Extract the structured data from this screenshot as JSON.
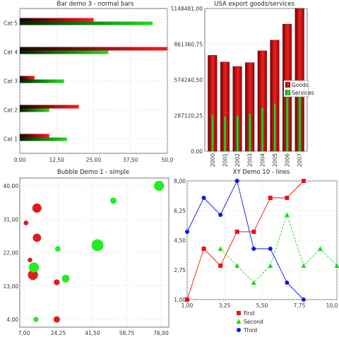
{
  "chart_data": [
    {
      "type": "bar",
      "orientation": "horizontal",
      "title": "Bar demo 3 - normal bars",
      "categories": [
        "Cat 1",
        "Cat 2",
        "Cat 3",
        "Cat 4",
        "Cat 5"
      ],
      "series": [
        {
          "values": [
            10,
            20,
            5,
            50,
            25
          ]
        },
        {
          "values": [
            16,
            10,
            15,
            30,
            45
          ]
        }
      ],
      "xlim": [
        0,
        50
      ],
      "xticks": [
        "0,00",
        "12,50",
        "25,00",
        "37,50",
        "50,0"
      ],
      "grid": true,
      "colors": [
        "#e31a1a",
        "#22cc22"
      ]
    },
    {
      "type": "bar",
      "title": "USA export goods/services",
      "categories": [
        "2000",
        "2001",
        "2002",
        "2003",
        "2004",
        "2005",
        "2006",
        "2007"
      ],
      "series": [
        {
          "name": "Goods",
          "values": [
            772000,
            718000,
            682000,
            713000,
            808000,
            894000,
            1023000,
            1148481
          ]
        },
        {
          "name": "Services",
          "values": [
            290000,
            279000,
            285000,
            301000,
            350000,
            385000,
            430000,
            497000
          ]
        }
      ],
      "ylim": [
        0,
        1148481
      ],
      "yticks": [
        "0,00",
        "287120,25",
        "574240,50",
        "861360,75",
        "1148481,00"
      ],
      "legend": "right",
      "grid": true,
      "colors": [
        "#cc1111",
        "#22bb22"
      ]
    },
    {
      "type": "scatter",
      "subtype": "bubble",
      "title": "Bubble Demo 1 - simple",
      "xlim": [
        7,
        76
      ],
      "ylim": [
        4,
        40
      ],
      "xticks": [
        "7,00",
        "24,25",
        "41,50",
        "58,75",
        "76,00"
      ],
      "yticks": [
        "4,00",
        "13,00",
        "22,00",
        "31,00",
        "40,00"
      ],
      "grid": true,
      "series": [
        {
          "color": "#e31a1a",
          "points": [
            [
              8,
              30,
              2.6
            ],
            [
              10,
              20,
              2.5
            ],
            [
              11.5,
              16,
              5.5
            ],
            [
              13.5,
              34,
              5.0
            ],
            [
              13.5,
              26,
              4.5
            ],
            [
              23.5,
              14,
              3.2
            ],
            [
              23.5,
              4,
              3.5
            ]
          ]
        },
        {
          "color": "#22ee22",
          "points": [
            [
              12,
              18,
              5.5
            ],
            [
              13,
              4,
              2.8
            ],
            [
              24,
              23,
              3.0
            ],
            [
              28,
              15,
              4.2
            ],
            [
              44,
              24,
              6.5
            ],
            [
              52,
              36,
              3.5
            ],
            [
              75,
              40,
              5.5
            ]
          ]
        }
      ]
    },
    {
      "type": "line",
      "title": "XY Demo 10 - lines",
      "xlim": [
        1,
        10
      ],
      "ylim": [
        1,
        8
      ],
      "xticks": [
        "1,00",
        "3,25",
        "5,50",
        "7,75",
        "10,0"
      ],
      "yticks": [
        "1,00",
        "2,75",
        "4,50",
        "6,25",
        "8,00"
      ],
      "legend": "bottom",
      "grid": true,
      "series": [
        {
          "name": "First",
          "color": "#ee1111",
          "marker": "square",
          "dash": "",
          "x": [
            1,
            2,
            3,
            4,
            5,
            6,
            7,
            8
          ],
          "y": [
            1,
            4,
            3,
            5,
            5,
            7,
            7,
            8
          ]
        },
        {
          "name": "Second",
          "color": "#11dd11",
          "marker": "triangle",
          "dash": "3,2",
          "x": [
            3,
            4,
            5,
            6,
            7,
            8,
            9,
            10
          ],
          "y": [
            4,
            3,
            2,
            3,
            6,
            3,
            4,
            3
          ]
        },
        {
          "name": "Third",
          "color": "#1111ee",
          "marker": "circle",
          "dash": "",
          "x": [
            1,
            2,
            3,
            4,
            5,
            6,
            7,
            8
          ],
          "y": [
            5,
            7,
            6,
            8,
            4,
            4,
            2,
            1
          ]
        }
      ]
    }
  ]
}
